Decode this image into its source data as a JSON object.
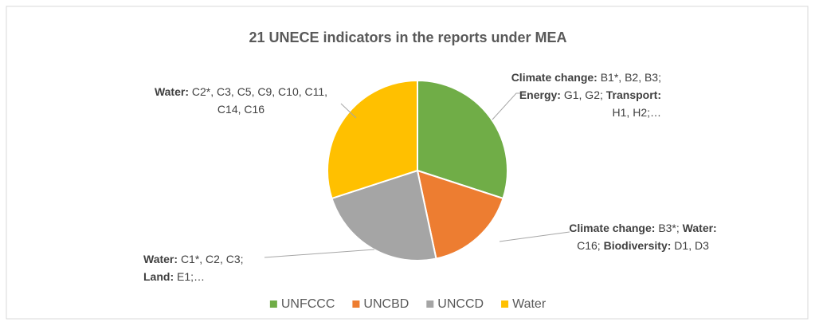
{
  "chart_data": {
    "type": "pie",
    "title": "21 UNECE indicators in the reports under MEA",
    "categories": [
      "UNFCCC",
      "UNCBD",
      "UNCCD",
      "Water"
    ],
    "values": [
      9,
      5,
      7,
      9
    ],
    "colors": [
      "#70ad47",
      "#ed7d31",
      "#a5a5a5",
      "#ffc000"
    ],
    "value_labels": [
      [
        {
          "topic": "Climate change:",
          "items": "B1*, B2, B3;"
        },
        {
          "topic": "Energy:",
          "items": "G1, G2;"
        },
        {
          "topic": "Transport:",
          "items": "H1, H2;…"
        }
      ],
      [
        {
          "topic": "Climate change:",
          "items": "B3*;"
        },
        {
          "topic": "Water:",
          "items": "C16;"
        },
        {
          "topic": "Biodiversity:",
          "items": "D1, D3"
        }
      ],
      [
        {
          "topic": "Water:",
          "items": "C1*, C2, C3;"
        },
        {
          "topic": "Land:",
          "items": "E1;…"
        }
      ],
      [
        {
          "topic": "Water:",
          "items": "C2*, C3, C5, C9, C10, C11, C14, C16"
        }
      ]
    ],
    "legend": "bottom"
  }
}
